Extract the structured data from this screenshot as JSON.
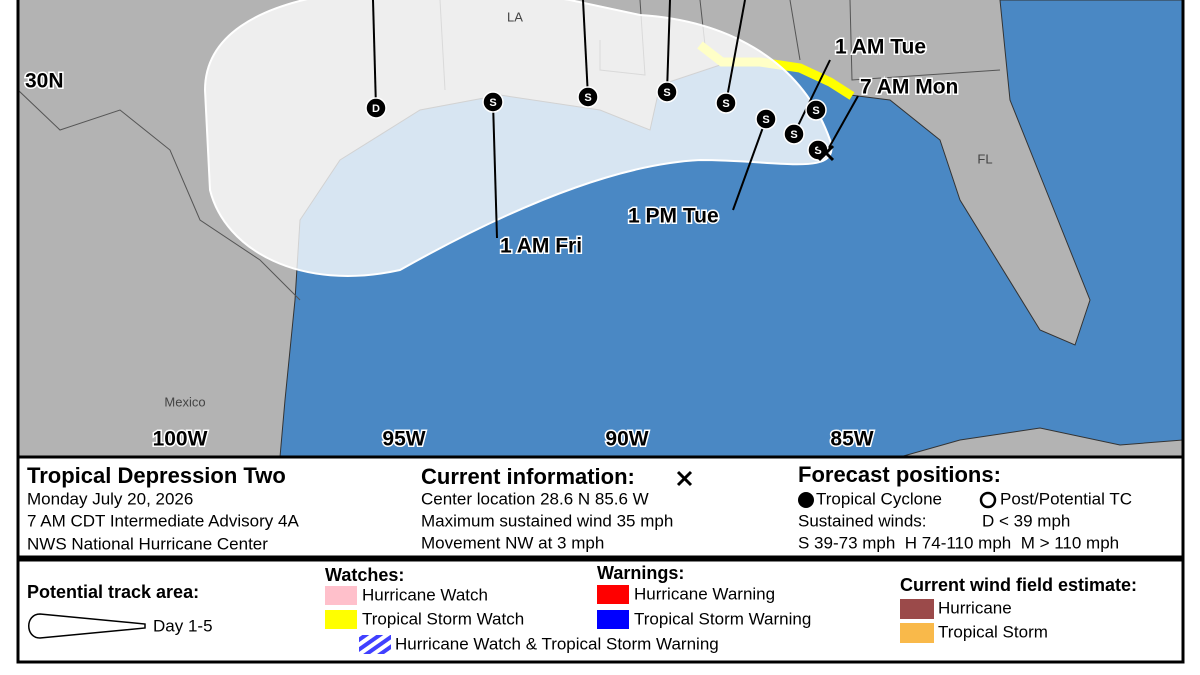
{
  "map": {
    "latitude_labels": [
      "30N"
    ],
    "longitude_labels": [
      "100W",
      "95W",
      "90W",
      "85W"
    ],
    "places": [
      "LA",
      "FL",
      "Mexico"
    ],
    "time_labels": [
      "1 AM Tue",
      "7 AM Mon",
      "1 PM Tue",
      "1 AM Fri"
    ],
    "positions": [
      "D",
      "S",
      "S",
      "S",
      "S",
      "S",
      "S",
      "S",
      "S"
    ]
  },
  "info": {
    "storm": {
      "title": "Tropical Depression Two",
      "lines": [
        "Monday July 20, 2026",
        "7 AM CDT Intermediate Advisory 4A",
        "NWS National Hurricane Center"
      ]
    },
    "current": {
      "title": "Current information:",
      "lines": [
        "Center location 28.6 N 85.6 W",
        "Maximum sustained wind 35 mph",
        "Movement NW at 3 mph"
      ]
    },
    "forecast": {
      "title": "Forecast positions:",
      "tropical_cyclone": "Tropical Cyclone",
      "post_tc": "Post/Potential TC",
      "sustained_label": "Sustained winds:",
      "depression": "D < 39 mph",
      "scale": "S 39-73 mph  H 74-110 mph  M > 110 mph"
    }
  },
  "legend": {
    "track_title": "Potential track area:",
    "track_item": "Day 1-5",
    "watches_title": "Watches:",
    "watches": [
      "Hurricane Watch",
      "Tropical Storm Watch"
    ],
    "warnings_title": "Warnings:",
    "warnings": [
      "Hurricane Warning",
      "Tropical Storm Warning"
    ],
    "combined": "Hurricane Watch & Tropical Storm Warning",
    "wind_title": "Current wind field estimate:",
    "wind": [
      "Hurricane",
      "Tropical Storm"
    ]
  }
}
